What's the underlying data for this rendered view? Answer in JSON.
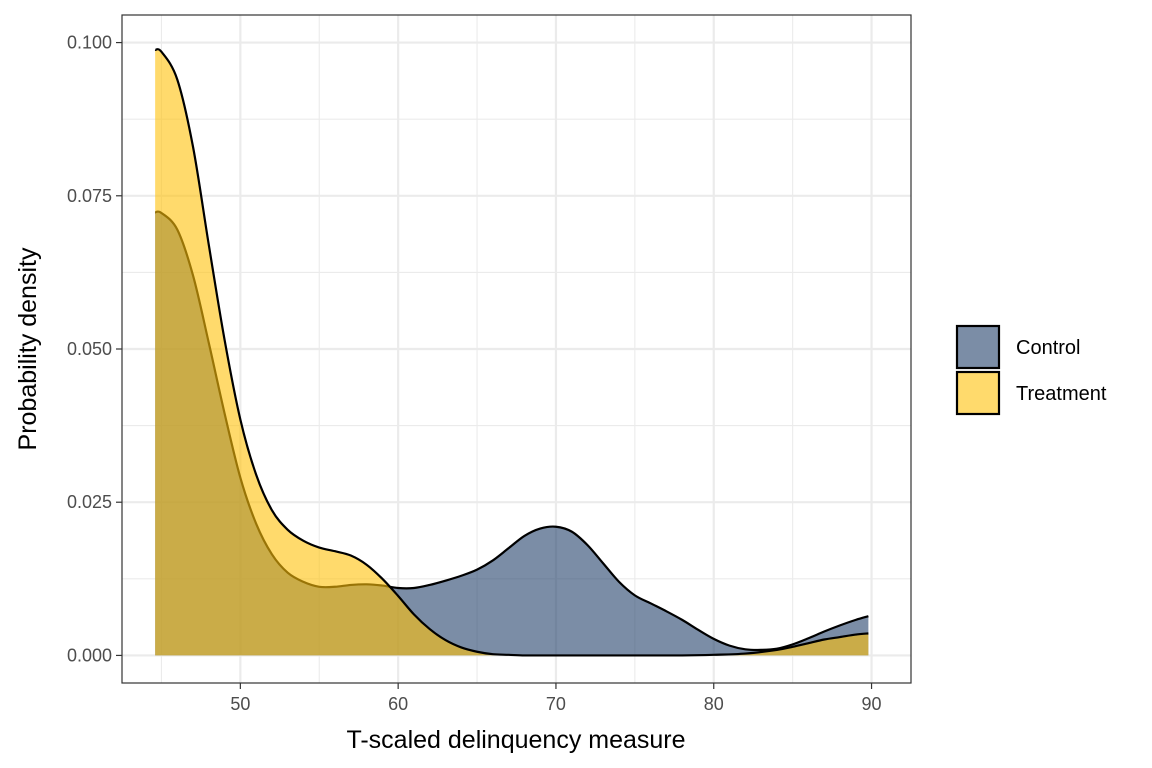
{
  "chart_data": {
    "type": "area",
    "title": "",
    "xlabel": "T-scaled delinquency measure",
    "ylabel": "Probability density",
    "xlim": [
      42.5,
      92.5
    ],
    "ylim": [
      -0.0045,
      0.1045
    ],
    "x_ticks": [
      50,
      60,
      70,
      80,
      90
    ],
    "x_tick_labels": [
      "50",
      "60",
      "70",
      "80",
      "90"
    ],
    "y_ticks": [
      0,
      0.025,
      0.05,
      0.075,
      0.1
    ],
    "y_tick_labels": [
      "0.000",
      "0.025",
      "0.050",
      "0.075",
      "0.100"
    ],
    "grid": true,
    "legend_position": "right",
    "series": [
      {
        "name": "Control",
        "color": "#23416b",
        "x": [
          44.6,
          45,
          46,
          47,
          48,
          49,
          50,
          51,
          52,
          53,
          54,
          55,
          56,
          57,
          58,
          59,
          60,
          61,
          62,
          63,
          64,
          65,
          66,
          67,
          68,
          69,
          70,
          71,
          72,
          73,
          74,
          75,
          76,
          77,
          78,
          79,
          80,
          81,
          82,
          83,
          84,
          85,
          86,
          87,
          88,
          89,
          89.8
        ],
        "values": [
          0.0723,
          0.0722,
          0.0695,
          0.062,
          0.051,
          0.0395,
          0.029,
          0.0215,
          0.0165,
          0.0135,
          0.012,
          0.0112,
          0.0112,
          0.0115,
          0.0116,
          0.0114,
          0.011,
          0.011,
          0.0115,
          0.0122,
          0.013,
          0.014,
          0.0155,
          0.0175,
          0.0195,
          0.0207,
          0.021,
          0.0202,
          0.018,
          0.015,
          0.012,
          0.0098,
          0.0085,
          0.0072,
          0.0058,
          0.0042,
          0.0027,
          0.0016,
          0.001,
          0.0009,
          0.0011,
          0.0018,
          0.0028,
          0.0039,
          0.0049,
          0.0058,
          0.0064
        ]
      },
      {
        "name": "Treatment",
        "color": "#ffc20a",
        "x": [
          44.6,
          45,
          46,
          47,
          48,
          49,
          50,
          51,
          52,
          53,
          54,
          55,
          56,
          57,
          58,
          59,
          60,
          61,
          62,
          63,
          64,
          65,
          66,
          67,
          68,
          69,
          70,
          72,
          75,
          78,
          80,
          82,
          84,
          85,
          86,
          87,
          88,
          89,
          89.8
        ],
        "values": [
          0.0988,
          0.0985,
          0.094,
          0.083,
          0.067,
          0.0515,
          0.0385,
          0.0295,
          0.0237,
          0.0205,
          0.0187,
          0.0176,
          0.017,
          0.0163,
          0.0148,
          0.0125,
          0.0097,
          0.0067,
          0.0043,
          0.0025,
          0.0013,
          0.0006,
          0.0002,
          0.0001,
          0,
          0,
          0,
          0,
          0,
          0,
          0.0001,
          0.0003,
          0.0009,
          0.0014,
          0.002,
          0.0026,
          0.003,
          0.0034,
          0.0036
        ]
      }
    ]
  }
}
